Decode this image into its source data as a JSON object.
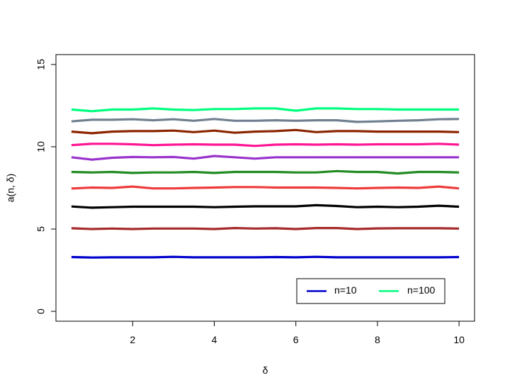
{
  "chart_data": {
    "type": "line",
    "title": "",
    "xlabel": "δ",
    "ylabel": "a(n, δ)",
    "xlim": [
      0.5,
      10
    ],
    "ylim": [
      0,
      15
    ],
    "x_ticks": [
      2,
      4,
      6,
      8,
      10
    ],
    "y_ticks": [
      0,
      5,
      10,
      15
    ],
    "x_tick_labels": [
      "2",
      "4",
      "6",
      "8",
      "10"
    ],
    "y_tick_labels": [
      "0",
      "5",
      "10",
      "15"
    ],
    "grid": false,
    "legend": {
      "position": "bottom-right",
      "entries": [
        {
          "label": "n=10",
          "color": "#0000cd"
        },
        {
          "label": "n=100",
          "color": "#00ff7f"
        }
      ]
    },
    "x": [
      0.5,
      1,
      1.5,
      2,
      2.5,
      3,
      3.5,
      4,
      4.5,
      5,
      5.5,
      6,
      6.5,
      7,
      7.5,
      8,
      8.5,
      9,
      9.5,
      10
    ],
    "series": [
      {
        "name": "n=10",
        "color": "#0000cd",
        "values": [
          3.3,
          3.27,
          3.28,
          3.28,
          3.28,
          3.31,
          3.28,
          3.28,
          3.28,
          3.28,
          3.3,
          3.28,
          3.31,
          3.28,
          3.28,
          3.28,
          3.28,
          3.28,
          3.28,
          3.3
        ]
      },
      {
        "color": "#a52a2a",
        "values": [
          5.05,
          5.0,
          5.03,
          5.0,
          5.03,
          5.03,
          5.03,
          5.0,
          5.06,
          5.03,
          5.05,
          5.0,
          5.06,
          5.06,
          5.0,
          5.04,
          5.05,
          5.05,
          5.05,
          5.03
        ]
      },
      {
        "color": "#000000",
        "values": [
          6.37,
          6.3,
          6.33,
          6.36,
          6.36,
          6.36,
          6.36,
          6.33,
          6.36,
          6.38,
          6.38,
          6.38,
          6.45,
          6.4,
          6.33,
          6.36,
          6.33,
          6.36,
          6.42,
          6.36
        ]
      },
      {
        "color": "#ee3b3b",
        "values": [
          7.46,
          7.52,
          7.5,
          7.58,
          7.47,
          7.47,
          7.5,
          7.52,
          7.55,
          7.55,
          7.52,
          7.52,
          7.52,
          7.5,
          7.47,
          7.5,
          7.52,
          7.5,
          7.58,
          7.47
        ]
      },
      {
        "color": "#228b22",
        "values": [
          8.47,
          8.44,
          8.47,
          8.41,
          8.44,
          8.44,
          8.47,
          8.41,
          8.47,
          8.47,
          8.47,
          8.44,
          8.44,
          8.52,
          8.47,
          8.47,
          8.38,
          8.47,
          8.47,
          8.44
        ]
      },
      {
        "color": "#9932cc",
        "values": [
          9.36,
          9.22,
          9.33,
          9.38,
          9.36,
          9.38,
          9.28,
          9.44,
          9.36,
          9.28,
          9.36,
          9.36,
          9.36,
          9.36,
          9.36,
          9.36,
          9.36,
          9.36,
          9.36,
          9.36
        ]
      },
      {
        "color": "#ff1493",
        "values": [
          10.1,
          10.18,
          10.18,
          10.15,
          10.1,
          10.13,
          10.15,
          10.13,
          10.13,
          10.05,
          10.13,
          10.15,
          10.13,
          10.15,
          10.13,
          10.15,
          10.15,
          10.15,
          10.18,
          10.13
        ]
      },
      {
        "color": "#8b2500",
        "values": [
          10.92,
          10.82,
          10.92,
          10.95,
          10.95,
          10.98,
          10.89,
          10.98,
          10.85,
          10.92,
          10.95,
          11.02,
          10.89,
          10.95,
          10.95,
          10.92,
          10.92,
          10.92,
          10.92,
          10.89
        ]
      },
      {
        "color": "#708090",
        "values": [
          11.54,
          11.64,
          11.64,
          11.67,
          11.61,
          11.67,
          11.58,
          11.69,
          11.58,
          11.58,
          11.61,
          11.58,
          11.61,
          11.61,
          11.51,
          11.54,
          11.58,
          11.61,
          11.67,
          11.69
        ]
      },
      {
        "name": "n=100",
        "color": "#00ff7f",
        "values": [
          12.26,
          12.16,
          12.26,
          12.26,
          12.33,
          12.26,
          12.23,
          12.29,
          12.29,
          12.33,
          12.33,
          12.19,
          12.33,
          12.33,
          12.29,
          12.29,
          12.26,
          12.26,
          12.26,
          12.26
        ]
      }
    ]
  }
}
